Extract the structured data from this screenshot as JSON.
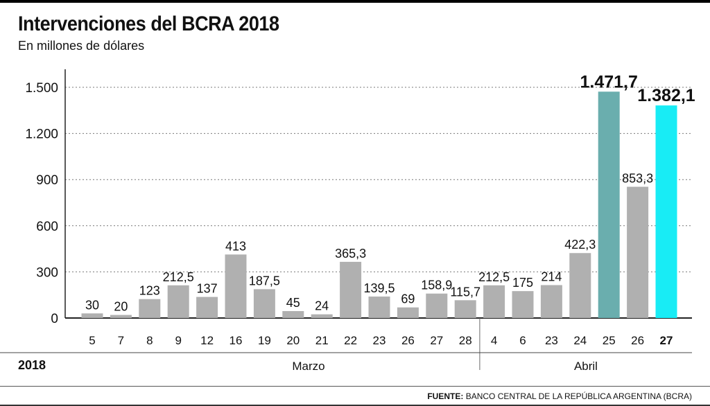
{
  "title": "Intervenciones del BCRA 2018",
  "subtitle": "En millones de dólares",
  "source_label": "FUENTE:",
  "source_text": "BANCO CENTRAL DE LA REPÚBLICA ARGENTINA (BCRA)",
  "year_label": "2018",
  "colors": {
    "bar": "#b0b0b0",
    "highlight_25": "#6aaeae",
    "highlight_27": "#18ecf5",
    "text": "#111111"
  },
  "chart_data": {
    "type": "bar",
    "title": "Intervenciones del BCRA 2018",
    "subtitle": "En millones de dólares",
    "ylim": [
      0,
      1500
    ],
    "yticks": [
      0,
      300,
      600,
      900,
      1200,
      1500
    ],
    "ytick_labels": [
      "0",
      "300",
      "600",
      "900",
      "1.200",
      "1.500"
    ],
    "grid": "dotted horizontal",
    "categories": [
      "5",
      "7",
      "8",
      "9",
      "12",
      "16",
      "19",
      "20",
      "21",
      "22",
      "23",
      "26",
      "27",
      "28",
      "4",
      "6",
      "23",
      "24",
      "25",
      "26",
      "27"
    ],
    "values": [
      30,
      20,
      123,
      212.5,
      137,
      413,
      187.5,
      45,
      24,
      365.3,
      139.5,
      69,
      158.9,
      115.7,
      212.5,
      175,
      214,
      422.3,
      1471.7,
      853.3,
      1382.1
    ],
    "value_labels": [
      "30",
      "20",
      "123",
      "212,5",
      "137",
      "413",
      "187,5",
      "45",
      "24",
      "365,3",
      "139,5",
      "69",
      "158,9",
      "115,7",
      "212,5",
      "175",
      "214",
      "422,3",
      "1.471,7",
      "853,3",
      "1.382,1"
    ],
    "months": [
      {
        "name": "Marzo",
        "count": 14
      },
      {
        "name": "Abril",
        "count": 7
      }
    ],
    "highlights": [
      {
        "index": 18,
        "color_key": "highlight_25",
        "bold_label": true
      },
      {
        "index": 20,
        "color_key": "highlight_27",
        "bold_label": true,
        "bold_category": true
      }
    ]
  }
}
